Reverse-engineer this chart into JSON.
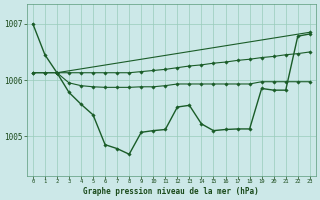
{
  "title": "Graphe pression niveau de la mer (hPa)",
  "background_color": "#cce8e8",
  "grid_color": "#99ccbb",
  "line_color": "#1a5c28",
  "xlim": [
    -0.5,
    23.5
  ],
  "ylim": [
    1004.3,
    1007.35
  ],
  "yticks": [
    1005,
    1006,
    1007
  ],
  "xticks": [
    0,
    1,
    2,
    3,
    4,
    5,
    6,
    7,
    8,
    9,
    10,
    11,
    12,
    13,
    14,
    15,
    16,
    17,
    18,
    19,
    20,
    21,
    22,
    23
  ],
  "series_straight": {
    "x": [
      2,
      23
    ],
    "y": [
      1006.13,
      1006.85
    ]
  },
  "series_flat_upper": [
    1006.13,
    1006.13,
    1006.13,
    1006.13,
    1006.13,
    1006.13,
    1006.13,
    1006.13,
    1006.13,
    1006.15,
    1006.17,
    1006.19,
    1006.22,
    1006.25,
    1006.27,
    1006.3,
    1006.32,
    1006.35,
    1006.37,
    1006.4,
    1006.42,
    1006.45,
    1006.47,
    1006.5
  ],
  "series_flat_lower": [
    1006.13,
    1006.13,
    1006.13,
    1005.95,
    1005.9,
    1005.88,
    1005.87,
    1005.87,
    1005.87,
    1005.88,
    1005.88,
    1005.9,
    1005.93,
    1005.93,
    1005.93,
    1005.93,
    1005.93,
    1005.93,
    1005.93,
    1005.97,
    1005.97,
    1005.97,
    1005.97,
    1005.97
  ],
  "series_dip": [
    1007.0,
    1006.45,
    1006.13,
    1005.78,
    1005.57,
    1005.38,
    1004.85,
    1004.78,
    1004.68,
    1005.07,
    1005.1,
    1005.12,
    1005.52,
    1005.55,
    1005.22,
    1005.1,
    1005.12,
    1005.13,
    1005.13,
    1005.85,
    1005.82,
    1005.82,
    1006.78,
    1006.82
  ]
}
